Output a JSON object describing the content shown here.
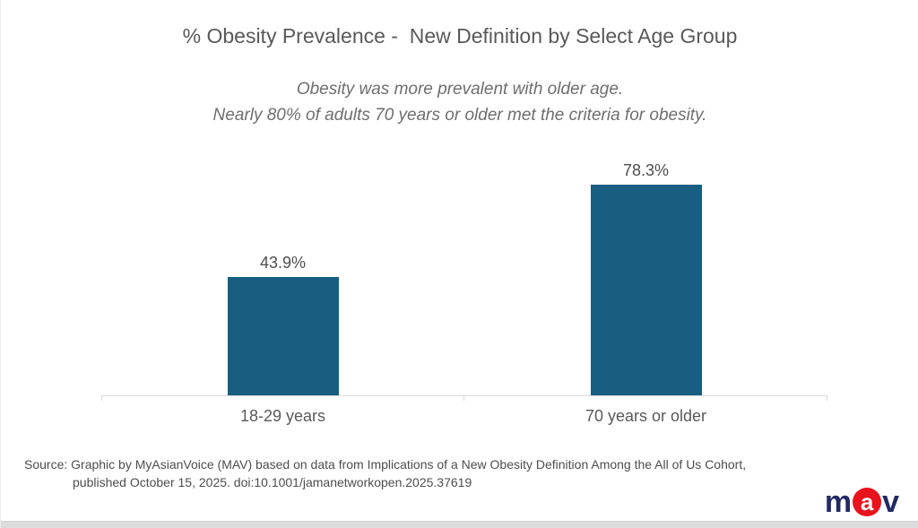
{
  "title": "% Obesity Prevalence -  New Definition by Select Age Group",
  "subtitle": {
    "line1": "Obesity was more prevalent with older age.",
    "line2": "Nearly 80% of adults 70 years or older met the criteria for obesity."
  },
  "chart_data": {
    "type": "bar",
    "categories": [
      "18-29 years",
      "70 years or older"
    ],
    "values": [
      43.9,
      78.3
    ],
    "value_labels": [
      "43.9%",
      "78.3%"
    ],
    "title": "% Obesity Prevalence -  New Definition by Select Age Group",
    "xlabel": "",
    "ylabel": "",
    "ylim": [
      0,
      100
    ],
    "grid": false,
    "legend": "none",
    "data_labels": true,
    "bar_color": "#175E80",
    "axis_color": "#D9D9D9"
  },
  "source": {
    "line1": "Source: Graphic by MyAsianVoice (MAV) based on data from Implications of a New Obesity Definition Among the All of Us Cohort,",
    "line2": "published October 15, 2025. doi:10.1001/jamanetworkopen.2025.37619"
  },
  "logo": {
    "letter_m": "m",
    "letter_a": "a",
    "letter_v": "v",
    "navy": "#232A63",
    "red": "#E8131C"
  }
}
